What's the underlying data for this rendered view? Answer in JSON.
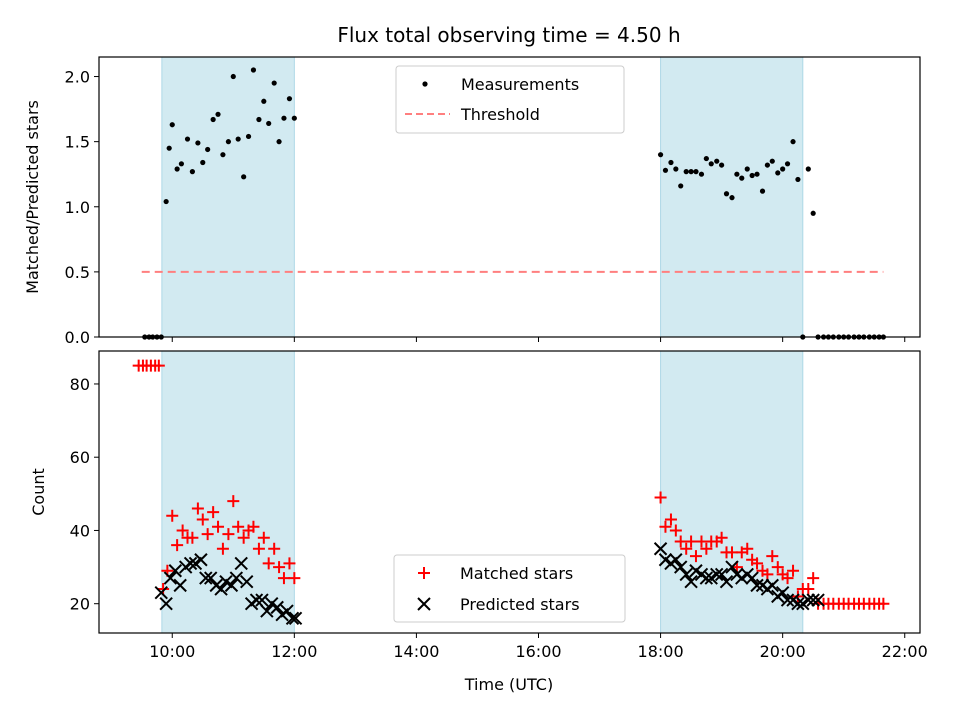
{
  "chart_data": {
    "title": "Flux total observing time = 4.50 h",
    "xlabel": "Time (UTC)",
    "x_units": "hours (UTC)",
    "xlim": [
      8.8,
      22.25
    ],
    "xticks": [
      {
        "value": 10,
        "label": "10:00"
      },
      {
        "value": 12,
        "label": "12:00"
      },
      {
        "value": 14,
        "label": "14:00"
      },
      {
        "value": 16,
        "label": "16:00"
      },
      {
        "value": 18,
        "label": "18:00"
      },
      {
        "value": 20,
        "label": "20:00"
      },
      {
        "value": 22,
        "label": "22:00"
      }
    ],
    "shaded_intervals": [
      [
        9.83,
        12.0
      ],
      [
        18.0,
        20.33
      ]
    ],
    "shade_color": "#add8e6",
    "panels": [
      {
        "type": "scatter",
        "ylabel": "Matched/Predicted stars",
        "ylim": [
          0,
          2.15
        ],
        "yticks": [
          {
            "value": 0,
            "label": "0.0"
          },
          {
            "value": 0.5,
            "label": "0.5"
          },
          {
            "value": 1,
            "label": "1.0"
          },
          {
            "value": 1.5,
            "label": "1.5"
          },
          {
            "value": 2,
            "label": "2.0"
          }
        ],
        "legend": [
          "Measurements",
          "Threshold"
        ],
        "legend_position": "top-center",
        "threshold": {
          "name": "Threshold",
          "value": 0.5,
          "x_range": [
            9.5,
            21.65
          ],
          "color": "#ff7f7f"
        },
        "series": [
          {
            "name": "Measurements",
            "marker": "dot",
            "color": "#000000",
            "x": [
              9.55,
              9.62,
              9.68,
              9.75,
              9.82,
              9.9,
              9.95,
              10.0,
              10.08,
              10.15,
              10.25,
              10.33,
              10.42,
              10.5,
              10.58,
              10.67,
              10.75,
              10.83,
              10.92,
              11.0,
              11.08,
              11.17,
              11.25,
              11.33,
              11.42,
              11.5,
              11.58,
              11.67,
              11.75,
              11.83,
              11.92,
              12.0,
              18.0,
              18.08,
              18.17,
              18.25,
              18.33,
              18.42,
              18.5,
              18.58,
              18.67,
              18.75,
              18.83,
              18.92,
              19.0,
              19.08,
              19.17,
              19.25,
              19.33,
              19.42,
              19.5,
              19.58,
              19.67,
              19.75,
              19.83,
              19.92,
              20.0,
              20.08,
              20.17,
              20.25,
              20.33,
              20.42,
              20.5,
              20.58,
              20.67,
              20.75,
              20.83,
              20.92,
              21.0,
              21.08,
              21.17,
              21.25,
              21.33,
              21.42,
              21.5,
              21.58,
              21.65
            ],
            "y": [
              0,
              0,
              0,
              0,
              0,
              1.04,
              1.45,
              1.63,
              1.29,
              1.33,
              1.52,
              1.27,
              1.49,
              1.34,
              1.44,
              1.67,
              1.71,
              1.4,
              1.5,
              2.0,
              1.52,
              1.23,
              1.54,
              2.05,
              1.67,
              1.81,
              1.64,
              1.95,
              1.5,
              1.68,
              1.83,
              1.68,
              1.4,
              1.28,
              1.34,
              1.29,
              1.16,
              1.27,
              1.27,
              1.27,
              1.25,
              1.37,
              1.33,
              1.35,
              1.32,
              1.1,
              1.07,
              1.25,
              1.22,
              1.29,
              1.24,
              1.25,
              1.12,
              1.32,
              1.35,
              1.26,
              1.29,
              1.33,
              1.5,
              1.21,
              0,
              1.29,
              0.95,
              0,
              0,
              0,
              0,
              0,
              0,
              0,
              0,
              0,
              0,
              0,
              0,
              0,
              0
            ]
          }
        ]
      },
      {
        "type": "scatter",
        "ylabel": "Count",
        "ylim": [
          12,
          89
        ],
        "yticks": [
          {
            "value": 20,
            "label": "20"
          },
          {
            "value": 40,
            "label": "40"
          },
          {
            "value": 60,
            "label": "60"
          },
          {
            "value": 80,
            "label": "80"
          }
        ],
        "legend": [
          "Matched stars",
          "Predicted stars"
        ],
        "legend_position": "bottom-center",
        "series": [
          {
            "name": "Matched stars",
            "marker": "plus",
            "color": "#ff0000",
            "x": [
              9.45,
              9.52,
              9.58,
              9.65,
              9.72,
              9.78,
              9.85,
              9.92,
              10.0,
              10.08,
              10.17,
              10.25,
              10.33,
              10.42,
              10.5,
              10.58,
              10.67,
              10.75,
              10.83,
              10.92,
              11.0,
              11.08,
              11.17,
              11.25,
              11.33,
              11.42,
              11.5,
              11.58,
              11.67,
              11.75,
              11.83,
              11.92,
              12.0,
              18.0,
              18.08,
              18.17,
              18.25,
              18.33,
              18.42,
              18.5,
              18.58,
              18.67,
              18.75,
              18.83,
              18.92,
              19.0,
              19.08,
              19.17,
              19.25,
              19.33,
              19.42,
              19.5,
              19.58,
              19.67,
              19.75,
              19.83,
              19.92,
              20.0,
              20.08,
              20.17,
              20.25,
              20.33,
              20.42,
              20.5,
              20.58,
              20.67,
              20.75,
              20.83,
              20.92,
              21.0,
              21.08,
              21.17,
              21.25,
              21.33,
              21.42,
              21.5,
              21.58,
              21.65
            ],
            "y": [
              85,
              85,
              85,
              85,
              85,
              85,
              24,
              29,
              44,
              36,
              40,
              38,
              38,
              46,
              43,
              39,
              45,
              41,
              35,
              39,
              48,
              41,
              38,
              40,
              41,
              35,
              38,
              31,
              35,
              30,
              27,
              31,
              27,
              49,
              41,
              43,
              40,
              37,
              35,
              37,
              33,
              37,
              35,
              37,
              37,
              38,
              34,
              34,
              30,
              34,
              35,
              32,
              31,
              29,
              28,
              33,
              30,
              28,
              27,
              29,
              22,
              24,
              24,
              27,
              20,
              20,
              20,
              20,
              20,
              20,
              20,
              20,
              20,
              20,
              20,
              20,
              20,
              20
            ]
          },
          {
            "name": "Predicted stars",
            "marker": "x",
            "color": "#000000",
            "x": [
              9.82,
              9.9,
              9.97,
              10.05,
              10.13,
              10.22,
              10.3,
              10.38,
              10.47,
              10.55,
              10.63,
              10.72,
              10.8,
              10.88,
              10.97,
              11.05,
              11.13,
              11.22,
              11.3,
              11.38,
              11.47,
              11.55,
              11.63,
              11.72,
              11.8,
              11.88,
              11.97,
              12.02,
              18.0,
              18.08,
              18.17,
              18.25,
              18.33,
              18.42,
              18.5,
              18.58,
              18.67,
              18.75,
              18.83,
              18.92,
              19.0,
              19.08,
              19.17,
              19.25,
              19.33,
              19.42,
              19.5,
              19.58,
              19.67,
              19.75,
              19.83,
              19.92,
              20.0,
              20.08,
              20.17,
              20.25,
              20.33,
              20.42,
              20.5,
              20.58
            ],
            "y": [
              23,
              20,
              27,
              29,
              25,
              30,
              31,
              31,
              32,
              27,
              27,
              25,
              24,
              26,
              25,
              27,
              31,
              26,
              20,
              21,
              21,
              18,
              20,
              19,
              17,
              18,
              16,
              16,
              35,
              32,
              31,
              32,
              30,
              28,
              26,
              29,
              28,
              27,
              27,
              28,
              28,
              26,
              30,
              28,
              27,
              28,
              27,
              25,
              25,
              24,
              25,
              22,
              23,
              21,
              21,
              20,
              20,
              21,
              21,
              21
            ]
          }
        ]
      }
    ]
  }
}
